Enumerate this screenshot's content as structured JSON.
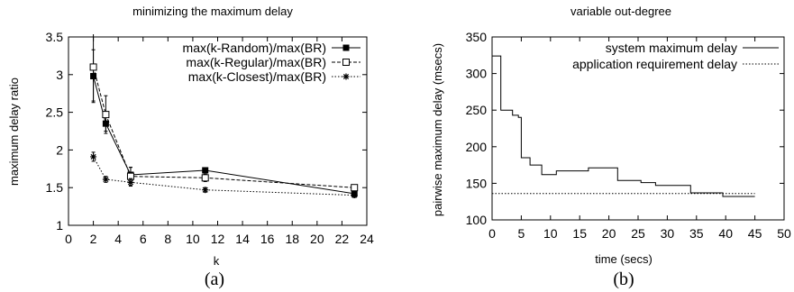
{
  "chart_data": [
    {
      "type": "line",
      "title": "minimizing the maximum delay",
      "xlabel": "k",
      "ylabel": "maximum delay ratio",
      "caption": "(a)",
      "xlim": [
        0,
        24
      ],
      "ylim": [
        1,
        3.5
      ],
      "xticks": [
        0,
        2,
        4,
        6,
        8,
        10,
        12,
        14,
        16,
        18,
        20,
        22,
        24
      ],
      "yticks": [
        1,
        1.5,
        2,
        2.5,
        3,
        3.5
      ],
      "legend_position": "top-right",
      "series": [
        {
          "name": "max(k-Random)/max(BR)",
          "marker": "filled-square",
          "dash": "solid",
          "x": [
            2,
            3,
            5,
            11,
            23
          ],
          "values": [
            2.98,
            2.35,
            1.67,
            1.73,
            1.42
          ],
          "err": [
            0.35,
            0.1,
            0.1,
            0.03,
            0.03
          ]
        },
        {
          "name": "max(k-Regular)/max(BR)",
          "marker": "open-square",
          "dash": "dashed",
          "x": [
            2,
            3,
            5,
            11,
            23
          ],
          "values": [
            3.1,
            2.47,
            1.65,
            1.63,
            1.5
          ],
          "err": [
            0.45,
            0.25,
            0.12,
            0.05,
            0.03
          ]
        },
        {
          "name": "max(k-Closest)/max(BR)",
          "marker": "star",
          "dash": "dotted",
          "x": [
            2,
            3,
            5,
            11,
            23
          ],
          "values": [
            1.91,
            1.61,
            1.57,
            1.47,
            1.4
          ],
          "err": [
            0.06,
            0.04,
            0.05,
            0.03,
            0.03
          ]
        }
      ]
    },
    {
      "type": "line",
      "title": "variable out-degree",
      "xlabel": "time (secs)",
      "ylabel": "pairwise maximum delay (msecs)",
      "caption": "(b)",
      "xlim": [
        0,
        50
      ],
      "ylim": [
        100,
        350
      ],
      "xticks": [
        0,
        5,
        10,
        15,
        20,
        25,
        30,
        35,
        40,
        45,
        50
      ],
      "yticks": [
        100,
        150,
        200,
        250,
        300,
        350
      ],
      "legend_position": "top-right",
      "series": [
        {
          "name": "system maximum delay",
          "dash": "solid",
          "step": true,
          "points": [
            [
              0,
              324
            ],
            [
              1.5,
              324
            ],
            [
              1.5,
              250
            ],
            [
              3.5,
              250
            ],
            [
              3.5,
              243
            ],
            [
              4.5,
              243
            ],
            [
              4.5,
              240
            ],
            [
              5,
              240
            ],
            [
              5,
              185
            ],
            [
              6.5,
              185
            ],
            [
              6.5,
              175
            ],
            [
              8.5,
              175
            ],
            [
              8.5,
              162
            ],
            [
              11,
              162
            ],
            [
              11,
              167
            ],
            [
              16.5,
              167
            ],
            [
              16.5,
              171
            ],
            [
              21.5,
              171
            ],
            [
              21.5,
              154
            ],
            [
              25.5,
              154
            ],
            [
              25.5,
              151
            ],
            [
              28,
              151
            ],
            [
              28,
              147
            ],
            [
              34,
              147
            ],
            [
              34,
              137
            ],
            [
              39.5,
              137
            ],
            [
              39.5,
              132
            ],
            [
              45,
              132
            ]
          ]
        },
        {
          "name": "application requirement delay",
          "dash": "dotted",
          "step": false,
          "points": [
            [
              0,
              136
            ],
            [
              45,
              136
            ]
          ]
        }
      ]
    }
  ]
}
